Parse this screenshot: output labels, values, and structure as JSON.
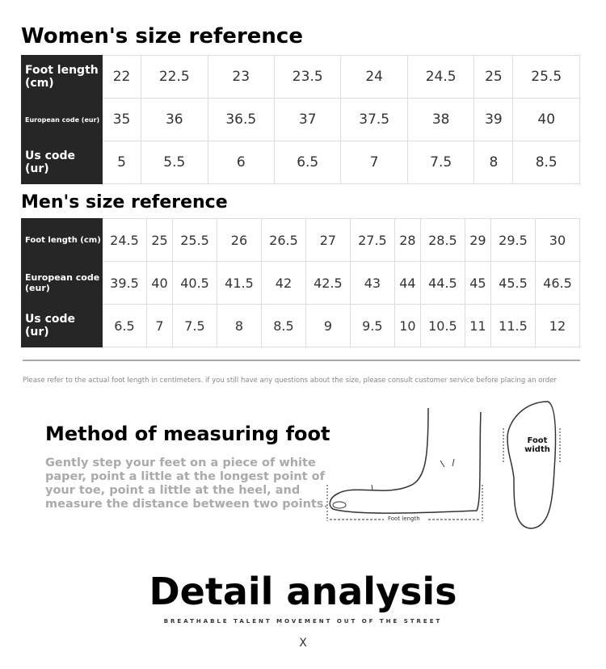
{
  "women": {
    "title": "Women's size reference",
    "rows": [
      {
        "label": "Foot length (cm)",
        "values": [
          "22",
          "22.5",
          "23",
          "23.5",
          "24",
          "24.5",
          "25",
          "25.5"
        ]
      },
      {
        "label": "European code (eur)",
        "values": [
          "35",
          "36",
          "36.5",
          "37",
          "37.5",
          "38",
          "39",
          "40"
        ]
      },
      {
        "label": "Us code (ur)",
        "values": [
          "5",
          "5.5",
          "6",
          "6.5",
          "7",
          "7.5",
          "8",
          "8.5"
        ]
      }
    ]
  },
  "men": {
    "title": "Men's size reference",
    "rows": [
      {
        "label": "Foot length (cm)",
        "values": [
          "24.5",
          "25",
          "25.5",
          "26",
          "26.5",
          "27",
          "27.5",
          "28",
          "28.5",
          "29",
          "29.5",
          "30"
        ]
      },
      {
        "label": "European code (eur)",
        "values": [
          "39.5",
          "40",
          "40.5",
          "41.5",
          "42",
          "42.5",
          "43",
          "44",
          "44.5",
          "45",
          "45.5",
          "46.5"
        ]
      },
      {
        "label": "Us code (ur)",
        "values": [
          "6.5",
          "7",
          "7.5",
          "8",
          "8.5",
          "9",
          "9.5",
          "10",
          "10.5",
          "11",
          "11.5",
          "12"
        ]
      }
    ]
  },
  "note": "Please refer to the actual foot length in centimeters. if you still have any questions about the size, please consult customer service before placing an order",
  "method": {
    "title": "Method of measuring foot",
    "text": "Gently step your feet on a piece of white paper, point a little at the longest point of your toe, point a little at the heel, and measure the distance between two points.",
    "foot_length": "Foot length",
    "foot_width": "Foot width"
  },
  "detail": {
    "title": "Detail analysis",
    "subtitle": "BREATHABLE TALENT MOVEMENT OUT OF THE STREET",
    "mark": "X"
  }
}
